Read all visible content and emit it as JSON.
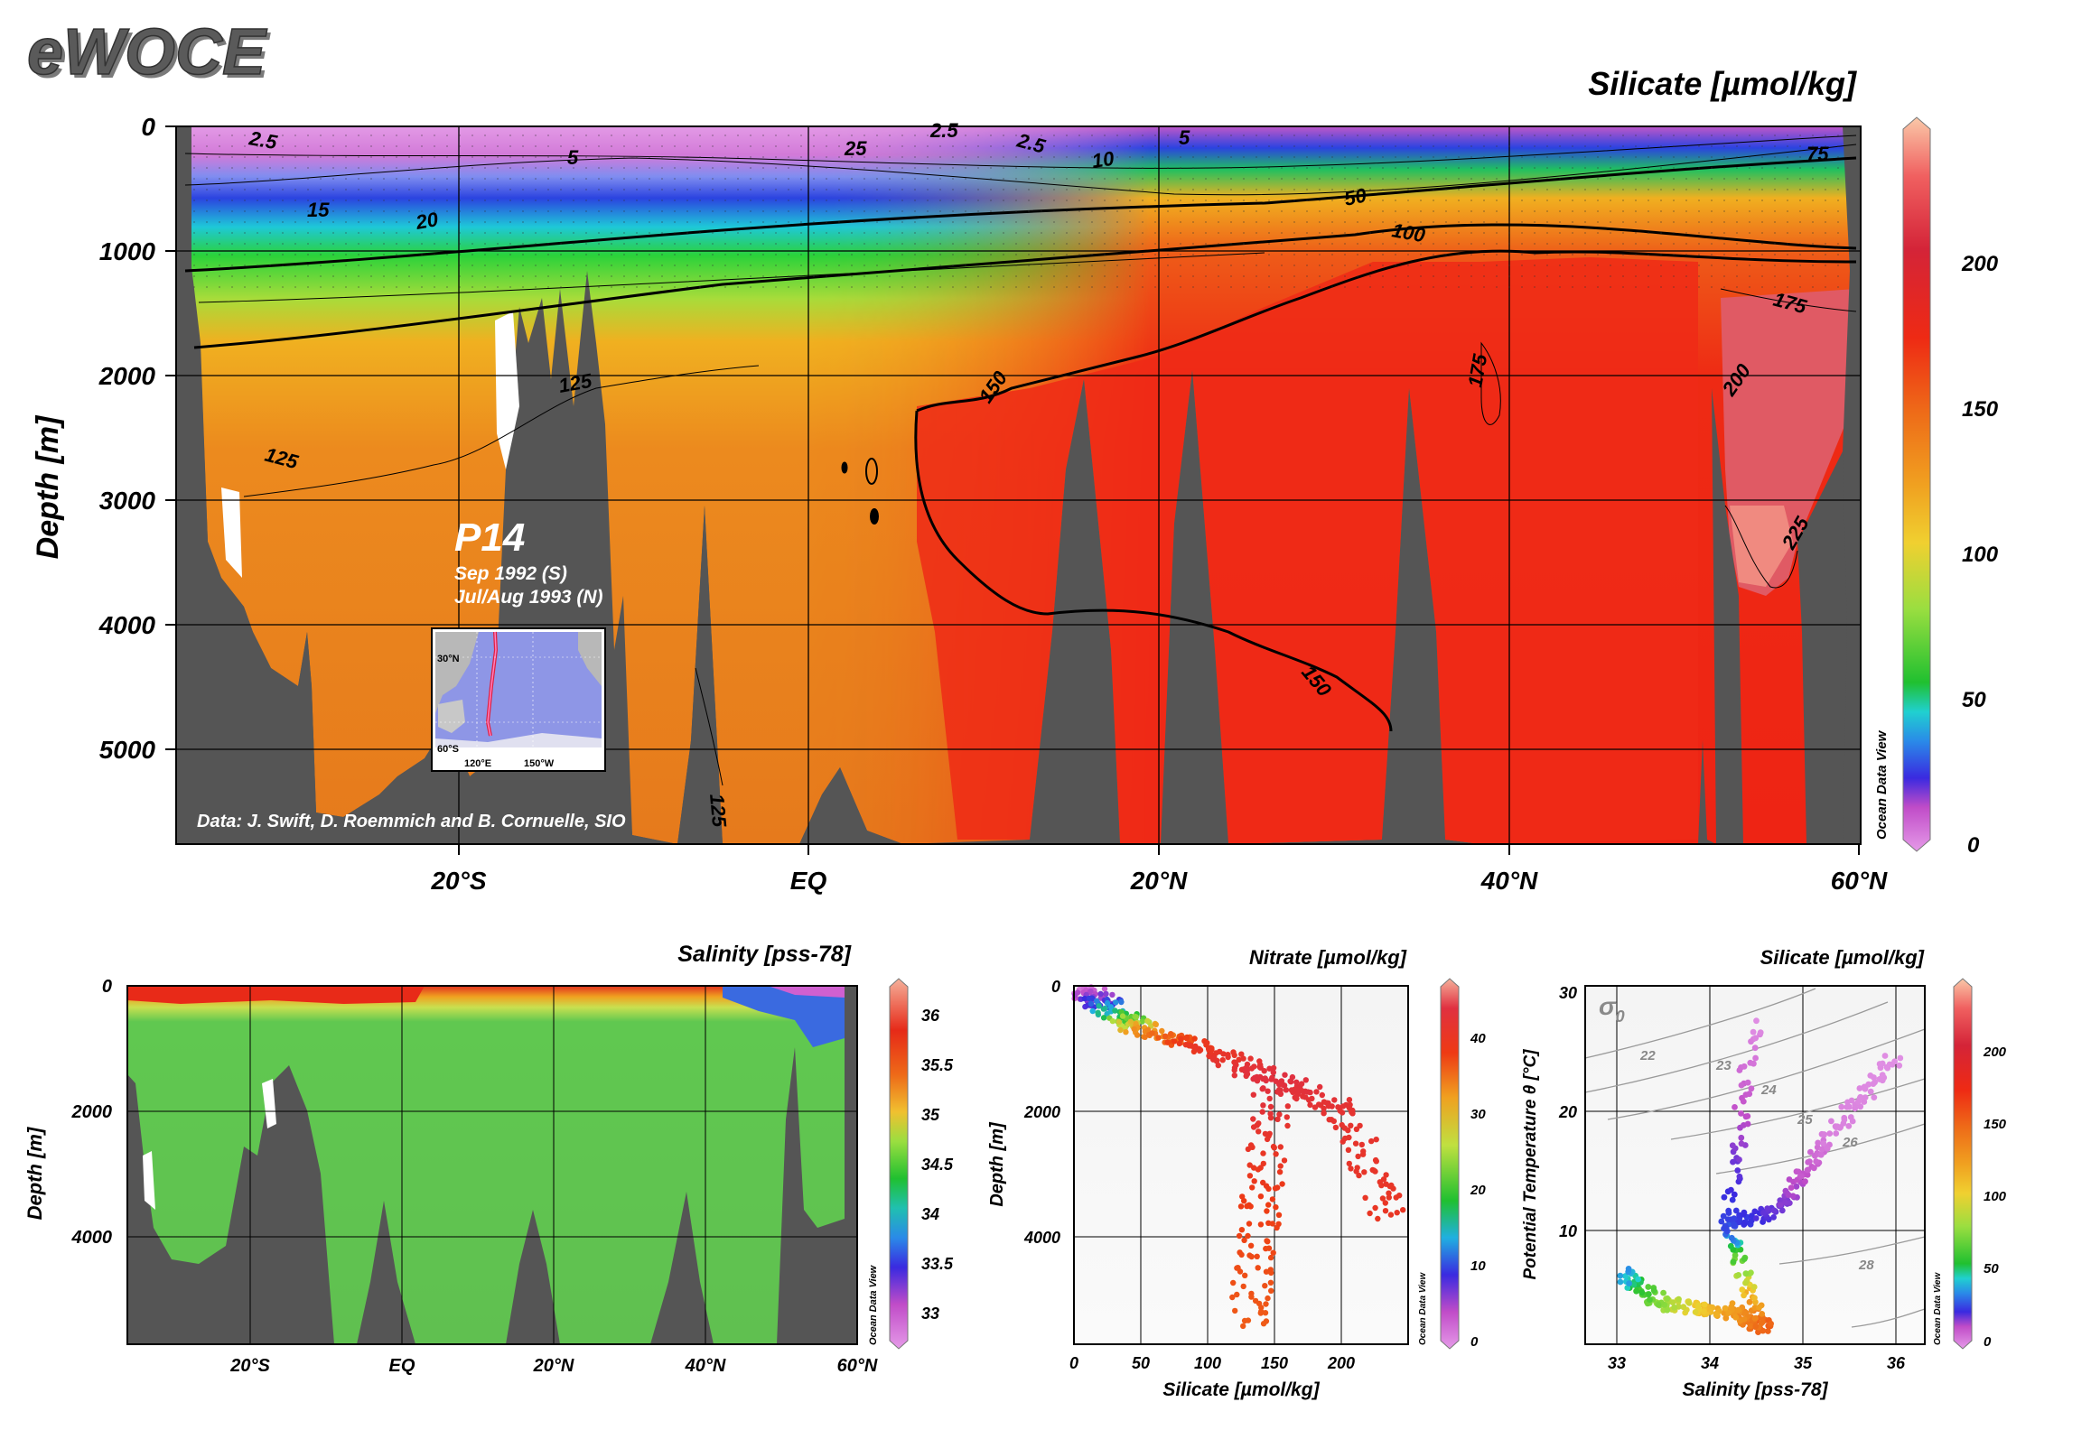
{
  "logo": "eWOCE",
  "main": {
    "title": "Silicate [µmol/kg]",
    "ylabel": "Depth [m]",
    "y_ticks": [
      "0",
      "1000",
      "2000",
      "3000",
      "4000",
      "5000"
    ],
    "x_ticks": [
      "20°S",
      "EQ",
      "20°N",
      "40°N",
      "60°N"
    ],
    "section_name": "P14",
    "date_south": "Sep 1992 (S)",
    "date_north": "Jul/Aug 1993 (N)",
    "credit": "Data: J. Swift, D. Roemmich and B. Cornuelle, SIO",
    "inset_labels": [
      "30°N",
      "60°S",
      "120°E",
      "150°W"
    ],
    "contour_labels": [
      "2.5",
      "2.5",
      "2.5",
      "5",
      "5",
      "10",
      "15",
      "20",
      "25",
      "50",
      "75",
      "100",
      "125",
      "125",
      "125",
      "150",
      "150",
      "175",
      "175",
      "200",
      "225"
    ],
    "colorbar_ticks": [
      "0",
      "50",
      "100",
      "150",
      "200"
    ],
    "watermark": "Ocean Data View"
  },
  "salinity": {
    "title": "Salinity [pss-78]",
    "ylabel": "Depth [m]",
    "y_ticks": [
      "0",
      "2000",
      "4000"
    ],
    "x_ticks": [
      "20°S",
      "EQ",
      "20°N",
      "40°N",
      "60°N"
    ],
    "colorbar_ticks": [
      "33",
      "33.5",
      "34",
      "34.5",
      "35",
      "35.5",
      "36"
    ],
    "watermark": "Ocean Data View"
  },
  "nitrate": {
    "title": "Nitrate [µmol/kg]",
    "ylabel": "Depth [m]",
    "xlabel": "Silicate [µmol/kg]",
    "y_ticks": [
      "0",
      "2000",
      "4000"
    ],
    "x_ticks": [
      "0",
      "50",
      "100",
      "150",
      "200"
    ],
    "colorbar_ticks": [
      "0",
      "10",
      "20",
      "30",
      "40"
    ],
    "watermark": "Ocean Data View"
  },
  "ts": {
    "title": "Silicate [µmol/kg]",
    "ylabel": "Potential Temperature θ [°C]",
    "xlabel": "Salinity [pss-78]",
    "y_ticks": [
      "10",
      "20",
      "30"
    ],
    "x_ticks": [
      "33",
      "34",
      "35",
      "36"
    ],
    "sigma_label": "σ",
    "sigma_sub": "0",
    "isopycnal_labels": [
      "22",
      "23",
      "24",
      "25",
      "26",
      "28"
    ],
    "colorbar_ticks": [
      "0",
      "50",
      "100",
      "150",
      "200"
    ],
    "watermark": "Ocean Data View"
  },
  "chart_data": [
    {
      "type": "heatmap",
      "title": "Silicate [µmol/kg]",
      "xlabel": "",
      "ylabel": "Depth [m]",
      "x_range": [
        -33,
        60
      ],
      "x_ticks": [
        -20,
        0,
        20,
        40,
        60
      ],
      "ylim": [
        5750,
        0
      ],
      "y_ticks": [
        0,
        1000,
        2000,
        3000,
        4000,
        5000
      ],
      "colorbar": [
        0,
        240
      ],
      "contours": [
        2.5,
        5,
        10,
        15,
        20,
        25,
        50,
        75,
        100,
        125,
        150,
        175,
        200,
        225
      ],
      "sampled_values": [
        {
          "depth": 0,
          "south": 2.5,
          "equator": 5,
          "north": 10
        },
        {
          "depth": 500,
          "south": 15,
          "equator": 50,
          "north": 75
        },
        {
          "depth": 1000,
          "south": 50,
          "equator": 100,
          "north": 125
        },
        {
          "depth": 2000,
          "south": 125,
          "equator": 140,
          "north": 160
        },
        {
          "depth": 3000,
          "south": 125,
          "equator": 140,
          "north": 175
        },
        {
          "depth": 4000,
          "south": 125,
          "equator": 140,
          "north": 165
        }
      ]
    },
    {
      "type": "heatmap",
      "title": "Salinity [pss-78]",
      "xlabel": "",
      "ylabel": "Depth [m]",
      "x_range": [
        -33,
        60
      ],
      "ylim": [
        5750,
        0
      ],
      "colorbar": [
        32.8,
        36.2
      ]
    },
    {
      "type": "scatter",
      "title": "Nitrate [µmol/kg]",
      "xlabel": "Silicate [µmol/kg]",
      "ylabel": "Depth [m]",
      "xlim": [
        0,
        250
      ],
      "ylim": [
        5750,
        0
      ],
      "colorbar": [
        0,
        45
      ],
      "points": [
        {
          "silicate": 5,
          "depth": 50,
          "nitrate": 2
        },
        {
          "silicate": 25,
          "depth": 300,
          "nitrate": 10
        },
        {
          "silicate": 50,
          "depth": 700,
          "nitrate": 30
        },
        {
          "silicate": 100,
          "depth": 1000,
          "nitrate": 38
        },
        {
          "silicate": 150,
          "depth": 1500,
          "nitrate": 42
        },
        {
          "silicate": 200,
          "depth": 2000,
          "nitrate": 40
        },
        {
          "silicate": 240,
          "depth": 3800,
          "nitrate": 38
        },
        {
          "silicate": 140,
          "depth": 3500,
          "nitrate": 36
        },
        {
          "silicate": 130,
          "depth": 5500,
          "nitrate": 34
        }
      ]
    },
    {
      "type": "scatter",
      "title": "Silicate [µmol/kg]",
      "xlabel": "Salinity [pss-78]",
      "ylabel": "Potential Temperature θ [°C]",
      "xlim": [
        32.7,
        36.3
      ],
      "ylim": [
        0,
        31
      ],
      "colorbar": [
        0,
        240
      ],
      "isopycnals": [
        22,
        23,
        24,
        25,
        26,
        28
      ],
      "points": [
        {
          "salinity": 34.6,
          "theta": 1.5,
          "silicate": 150
        },
        {
          "salinity": 34.2,
          "theta": 3,
          "silicate": 120
        },
        {
          "salinity": 33.5,
          "theta": 3.5,
          "silicate": 80
        },
        {
          "salinity": 33.1,
          "theta": 6,
          "silicate": 40
        },
        {
          "salinity": 34.2,
          "theta": 10,
          "silicate": 30
        },
        {
          "salinity": 34.8,
          "theta": 12,
          "silicate": 20
        },
        {
          "salinity": 35.3,
          "theta": 18,
          "silicate": 5
        },
        {
          "salinity": 36.0,
          "theta": 25,
          "silicate": 2
        },
        {
          "salinity": 34.5,
          "theta": 28,
          "silicate": 2
        }
      ]
    }
  ]
}
